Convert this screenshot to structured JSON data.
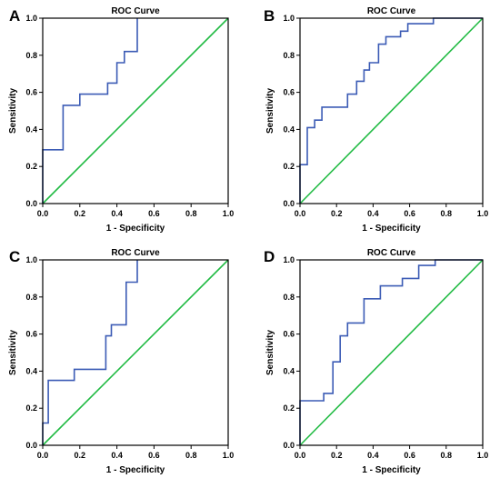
{
  "chart_data": [
    {
      "panel": "A",
      "type": "line",
      "title": "ROC Curve",
      "xlabel": "1 - Specificity",
      "ylabel": "Sensitivity",
      "xlim": [
        0,
        1
      ],
      "ylim": [
        0,
        1
      ],
      "x_ticks": [
        "0.0",
        "0.2",
        "0.4",
        "0.6",
        "0.8",
        "1.0"
      ],
      "y_ticks": [
        "0.0",
        "0.2",
        "0.4",
        "0.6",
        "0.8",
        "1.0"
      ],
      "grid": false,
      "colors": {
        "curve": "#3b5bb5",
        "reference": "#22bb44"
      },
      "series": [
        {
          "x": [
            0,
            0,
            0.11,
            0.11,
            0.2,
            0.2,
            0.3,
            0.3,
            0.35,
            0.35,
            0.4,
            0.4,
            0.44,
            0.44,
            0.51,
            0.51
          ],
          "y": [
            0,
            0.29,
            0.29,
            0.53,
            0.53,
            0.59,
            0.59,
            0.59,
            0.59,
            0.65,
            0.65,
            0.76,
            0.76,
            0.82,
            0.82,
            1.0
          ]
        },
        {
          "x": [
            0,
            1
          ],
          "y": [
            0,
            1
          ]
        }
      ]
    },
    {
      "panel": "B",
      "type": "line",
      "title": "ROC Curve",
      "xlabel": "1 - Specificity",
      "ylabel": "Sensitivity",
      "xlim": [
        0,
        1
      ],
      "ylim": [
        0,
        1
      ],
      "x_ticks": [
        "0.0",
        "0.2",
        "0.4",
        "0.6",
        "0.8",
        "1.0"
      ],
      "y_ticks": [
        "0.0",
        "0.2",
        "0.4",
        "0.6",
        "0.8",
        "1.0"
      ],
      "grid": false,
      "colors": {
        "curve": "#3b5bb5",
        "reference": "#22bb44"
      },
      "series": [
        {
          "x": [
            0,
            0,
            0.04,
            0.04,
            0.08,
            0.08,
            0.12,
            0.12,
            0.26,
            0.26,
            0.31,
            0.31,
            0.35,
            0.35,
            0.38,
            0.38,
            0.43,
            0.43,
            0.47,
            0.47,
            0.55,
            0.55,
            0.59,
            0.59,
            0.63,
            0.63,
            0.73,
            0.73,
            1.0
          ],
          "y": [
            0,
            0.21,
            0.21,
            0.41,
            0.41,
            0.45,
            0.45,
            0.52,
            0.52,
            0.59,
            0.59,
            0.66,
            0.66,
            0.72,
            0.72,
            0.76,
            0.76,
            0.86,
            0.86,
            0.9,
            0.9,
            0.93,
            0.93,
            0.97,
            0.97,
            0.97,
            0.97,
            1.0,
            1.0
          ]
        },
        {
          "x": [
            0,
            1
          ],
          "y": [
            0,
            1
          ]
        }
      ]
    },
    {
      "panel": "C",
      "type": "line",
      "title": "ROC Curve",
      "xlabel": "1 - Specificity",
      "ylabel": "Sensitivity",
      "xlim": [
        0,
        1
      ],
      "ylim": [
        0,
        1
      ],
      "x_ticks": [
        "0.0",
        "0.2",
        "0.4",
        "0.6",
        "0.8",
        "1.0"
      ],
      "y_ticks": [
        "0.0",
        "0.2",
        "0.4",
        "0.6",
        "0.8",
        "1.0"
      ],
      "grid": false,
      "colors": {
        "curve": "#3b5bb5",
        "reference": "#22bb44"
      },
      "series": [
        {
          "x": [
            0,
            0,
            0.03,
            0.03,
            0.17,
            0.17,
            0.34,
            0.34,
            0.37,
            0.37,
            0.45,
            0.45,
            0.51,
            0.51
          ],
          "y": [
            0,
            0.12,
            0.12,
            0.35,
            0.35,
            0.41,
            0.41,
            0.59,
            0.59,
            0.65,
            0.65,
            0.88,
            0.88,
            1.0
          ]
        },
        {
          "x": [
            0,
            1
          ],
          "y": [
            0,
            1
          ]
        }
      ]
    },
    {
      "panel": "D",
      "type": "line",
      "title": "ROC Curve",
      "xlabel": "1 - Specificity",
      "ylabel": "Sensitivity",
      "xlim": [
        0,
        1
      ],
      "ylim": [
        0,
        1
      ],
      "x_ticks": [
        "0.0",
        "0.2",
        "0.4",
        "0.6",
        "0.8",
        "1.0"
      ],
      "y_ticks": [
        "0.0",
        "0.2",
        "0.4",
        "0.6",
        "0.8",
        "1.0"
      ],
      "grid": false,
      "colors": {
        "curve": "#3b5bb5",
        "reference": "#22bb44"
      },
      "series": [
        {
          "x": [
            0,
            0,
            0.13,
            0.13,
            0.18,
            0.18,
            0.22,
            0.22,
            0.26,
            0.26,
            0.35,
            0.35,
            0.44,
            0.44,
            0.56,
            0.56,
            0.65,
            0.65,
            0.74,
            0.74,
            1.0
          ],
          "y": [
            0,
            0.24,
            0.24,
            0.28,
            0.28,
            0.45,
            0.45,
            0.59,
            0.59,
            0.66,
            0.66,
            0.79,
            0.79,
            0.86,
            0.86,
            0.9,
            0.9,
            0.97,
            0.97,
            1.0,
            1.0
          ]
        },
        {
          "x": [
            0,
            1
          ],
          "y": [
            0,
            1
          ]
        }
      ]
    }
  ]
}
